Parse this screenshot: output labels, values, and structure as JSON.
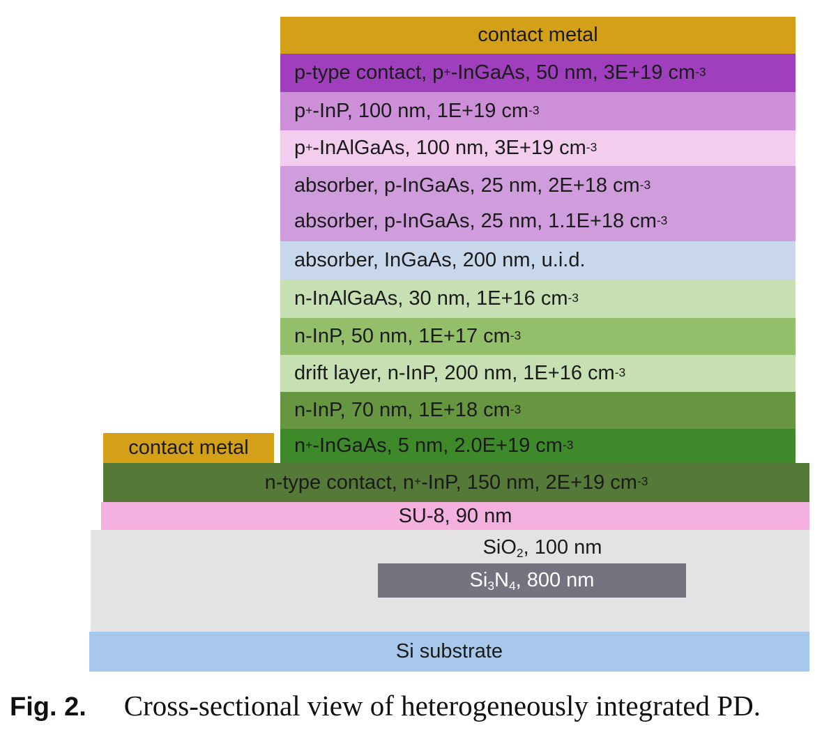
{
  "layers": {
    "contact_metal_top": {
      "text": "contact metal",
      "color": "#d4a017"
    },
    "p_contact": {
      "pre": "p-type contact, p",
      "sup1": "+",
      "mid": "-InGaAs, 50 nm, 3E+19 cm",
      "sup2": "-3",
      "color": "#a03fbe"
    },
    "p_inp": {
      "pre": "p",
      "sup1": "+",
      "mid": "-InP, 100 nm, 1E+19 cm",
      "sup2": "-3",
      "color": "#cc8fd8"
    },
    "p_inalgaas": {
      "pre": "p",
      "sup1": "+",
      "mid": "-InAlGaAs, 100 nm, 3E+19 cm",
      "sup2": "-3",
      "color": "#f2cdee"
    },
    "absorber_p1": {
      "mid": "absorber, p-InGaAs, 25 nm, 2E+18 cm",
      "sup2": "-3",
      "color": "#cf9ddc"
    },
    "absorber_p2": {
      "mid": "absorber, p-InGaAs, 25 nm, 1.1E+18 cm",
      "sup2": "-3"
    },
    "absorber_uid": {
      "mid": "absorber, InGaAs, 200 nm, u.i.d.",
      "color": "#c8d7ea"
    },
    "n_inalgaas": {
      "mid": "n-InAlGaAs, 30 nm, 1E+16 cm",
      "sup2": "-3",
      "color": "#c7e0b3"
    },
    "n_inp_50": {
      "mid": "n-InP, 50 nm, 1E+17 cm",
      "sup2": "-3",
      "color": "#93bf6b"
    },
    "drift": {
      "mid": "drift layer, n-InP, 200 nm, 1E+16 cm",
      "sup2": "-3",
      "color": "#c7e0b3"
    },
    "n_inp_70": {
      "mid": "n-InP, 70 nm, 1E+18 cm",
      "sup2": "-3",
      "color": "#66963f"
    },
    "n_ingaas": {
      "pre": "n",
      "sup1": "+",
      "mid": "-InGaAs, 5 nm, 2.0E+19 cm",
      "sup2": "-3",
      "color": "#3e8a2a"
    },
    "contact_metal_left": {
      "text": "contact metal",
      "color": "#d4a017"
    },
    "n_contact": {
      "pre": "n-type contact, n",
      "sup1": "+",
      "mid": "-InP, 150 nm, 2E+19 cm",
      "sup2": "-3",
      "color": "#557a38"
    },
    "su8": {
      "text": "SU-8, 90 nm",
      "color": "#f4b0df"
    },
    "sio2": {
      "pre": "SiO",
      "sub1": "2",
      "mid": ", 100 nm",
      "color": "#e3e3e3"
    },
    "si3n4": {
      "pre": "Si",
      "sub1": "3",
      "mid": "N",
      "sub2": "4",
      "post": ", 800 nm",
      "color": "#757380"
    },
    "si_substrate": {
      "text": "Si substrate",
      "color": "#a7c8ea"
    }
  },
  "caption": {
    "label": "Fig. 2.",
    "text": "Cross-sectional view of heterogeneously integrated PD."
  }
}
